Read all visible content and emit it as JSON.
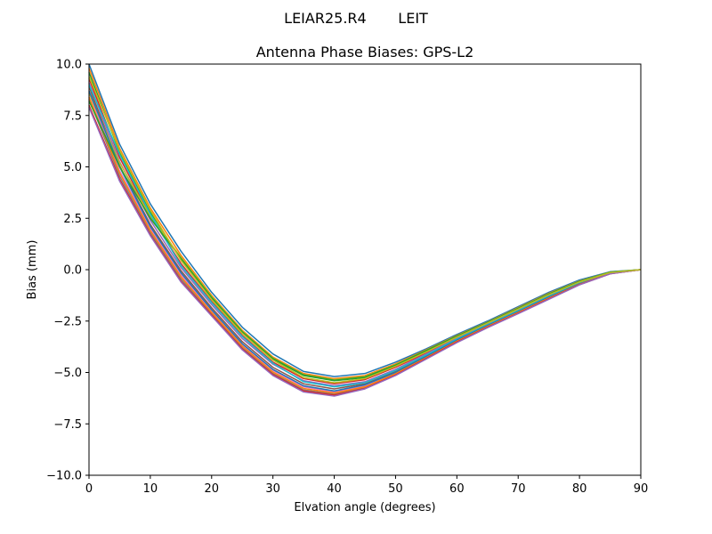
{
  "figure": {
    "suptitle": "LEIAR25.R4       LEIT"
  },
  "chart_data": {
    "type": "line",
    "title": "Antenna Phase Biases: GPS-L2",
    "xlabel": "Elvation angle (degrees)",
    "ylabel": "Bias (mm)",
    "xlim": [
      0,
      90
    ],
    "ylim": [
      -10,
      10
    ],
    "xticks": [
      0,
      10,
      20,
      30,
      40,
      50,
      60,
      70,
      80,
      90
    ],
    "yticks": [
      -10.0,
      -7.5,
      -5.0,
      -2.5,
      0.0,
      2.5,
      5.0,
      7.5,
      10.0
    ],
    "xtick_labels": [
      "0",
      "10",
      "20",
      "30",
      "40",
      "50",
      "60",
      "70",
      "80",
      "90"
    ],
    "ytick_labels": [
      "−10.0",
      "−7.5",
      "−5.0",
      "−2.5",
      "0.0",
      "2.5",
      "5.0",
      "7.5",
      "10.0"
    ],
    "grid": false,
    "legend": false,
    "x": [
      0,
      5,
      10,
      15,
      20,
      25,
      30,
      35,
      40,
      45,
      50,
      55,
      60,
      65,
      70,
      75,
      80,
      85,
      90
    ],
    "series": [
      {
        "color": "#1f77b4",
        "values": [
          10.0,
          6.1,
          3.2,
          0.9,
          -1.1,
          -2.8,
          -4.1,
          -4.95,
          -5.2,
          -5.05,
          -4.5,
          -3.85,
          -3.15,
          -2.5,
          -1.8,
          -1.1,
          -0.5,
          -0.1,
          0.0
        ]
      },
      {
        "color": "#ff7f0e",
        "values": [
          9.8,
          5.9,
          3.0,
          0.7,
          -1.25,
          -2.95,
          -4.25,
          -5.05,
          -5.3,
          -5.15,
          -4.58,
          -3.9,
          -3.2,
          -2.55,
          -1.85,
          -1.15,
          -0.55,
          -0.12,
          0.0
        ]
      },
      {
        "color": "#2ca02c",
        "values": [
          9.6,
          5.7,
          2.8,
          0.5,
          -1.4,
          -3.05,
          -4.35,
          -5.15,
          -5.4,
          -5.25,
          -4.65,
          -3.95,
          -3.25,
          -2.58,
          -1.9,
          -1.2,
          -0.58,
          -0.13,
          0.0
        ]
      },
      {
        "color": "#d62728",
        "values": [
          9.3,
          5.45,
          2.6,
          0.3,
          -1.55,
          -3.2,
          -4.5,
          -5.3,
          -5.55,
          -5.35,
          -4.75,
          -4.05,
          -3.3,
          -2.62,
          -1.95,
          -1.25,
          -0.62,
          -0.15,
          0.0
        ]
      },
      {
        "color": "#9467bd",
        "values": [
          9.1,
          5.25,
          2.4,
          0.1,
          -1.7,
          -3.35,
          -4.6,
          -5.4,
          -5.65,
          -5.45,
          -4.85,
          -4.1,
          -3.35,
          -2.66,
          -1.98,
          -1.28,
          -0.65,
          -0.16,
          0.0
        ]
      },
      {
        "color": "#8c564b",
        "values": [
          8.9,
          5.05,
          2.2,
          -0.05,
          -1.85,
          -3.5,
          -4.75,
          -5.55,
          -5.8,
          -5.55,
          -4.95,
          -4.2,
          -3.4,
          -2.7,
          -2.02,
          -1.32,
          -0.68,
          -0.17,
          0.0
        ]
      },
      {
        "color": "#e377c2",
        "values": [
          8.6,
          4.8,
          2.0,
          -0.25,
          -2.0,
          -3.65,
          -4.9,
          -5.7,
          -5.95,
          -5.65,
          -5.02,
          -4.25,
          -3.45,
          -2.74,
          -2.06,
          -1.36,
          -0.7,
          -0.18,
          0.0
        ]
      },
      {
        "color": "#7f7f7f",
        "values": [
          8.3,
          4.55,
          1.8,
          -0.45,
          -2.15,
          -3.8,
          -5.05,
          -5.85,
          -6.05,
          -5.75,
          -5.1,
          -4.3,
          -3.5,
          -2.78,
          -2.1,
          -1.4,
          -0.72,
          -0.19,
          0.0
        ]
      },
      {
        "color": "#bcbd22",
        "values": [
          8.6,
          5.2,
          2.6,
          0.6,
          -1.3,
          -3.0,
          -4.3,
          -5.1,
          -5.35,
          -5.2,
          -4.62,
          -3.92,
          -3.22,
          -2.56,
          -1.87,
          -1.17,
          -0.56,
          -0.12,
          0.0
        ]
      },
      {
        "color": "#17becf",
        "values": [
          9.0,
          5.6,
          2.7,
          0.2,
          -1.6,
          -3.25,
          -4.55,
          -5.45,
          -5.7,
          -5.5,
          -4.9,
          -4.15,
          -3.38,
          -2.68,
          -2.0,
          -1.3,
          -0.66,
          -0.16,
          0.0
        ]
      },
      {
        "color": "#1f77b4",
        "values": [
          8.7,
          5.0,
          2.1,
          -0.15,
          -1.95,
          -3.6,
          -4.85,
          -5.65,
          -5.9,
          -5.6,
          -5.0,
          -4.22,
          -3.43,
          -2.72,
          -2.04,
          -1.34,
          -0.69,
          -0.18,
          0.0
        ]
      },
      {
        "color": "#ff7f0e",
        "values": [
          8.4,
          4.7,
          1.9,
          -0.35,
          -2.08,
          -3.72,
          -4.98,
          -5.78,
          -6.0,
          -5.7,
          -5.06,
          -4.28,
          -3.48,
          -2.76,
          -2.08,
          -1.38,
          -0.71,
          -0.19,
          0.0
        ]
      },
      {
        "color": "#2ca02c",
        "values": [
          8.2,
          5.0,
          2.5,
          0.55,
          -1.35,
          -3.02,
          -4.32,
          -5.12,
          -5.38,
          -5.22,
          -4.64,
          -3.93,
          -3.23,
          -2.57,
          -1.88,
          -1.18,
          -0.57,
          -0.12,
          0.0
        ]
      },
      {
        "color": "#d62728",
        "values": [
          8.0,
          4.4,
          1.7,
          -0.55,
          -2.2,
          -3.85,
          -5.1,
          -5.9,
          -6.1,
          -5.78,
          -5.12,
          -4.32,
          -3.52,
          -2.8,
          -2.12,
          -1.42,
          -0.73,
          -0.2,
          0.0
        ]
      },
      {
        "color": "#9467bd",
        "values": [
          7.9,
          4.3,
          1.65,
          -0.6,
          -2.25,
          -3.9,
          -5.15,
          -5.95,
          -6.15,
          -5.8,
          -5.15,
          -4.35,
          -3.55,
          -2.82,
          -2.14,
          -1.44,
          -0.74,
          -0.2,
          0.0
        ]
      },
      {
        "color": "#bcbd22",
        "values": [
          9.4,
          5.8,
          2.9,
          0.45,
          -1.45,
          -3.1,
          -4.4,
          -5.25,
          -5.5,
          -5.3,
          -4.7,
          -4.0,
          -3.28,
          -2.6,
          -1.92,
          -1.22,
          -0.6,
          -0.14,
          0.0
        ]
      }
    ]
  }
}
